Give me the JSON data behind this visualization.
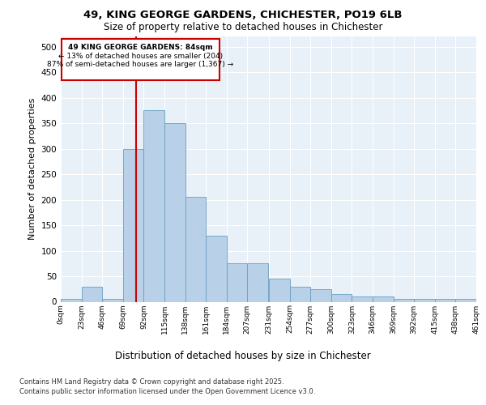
{
  "title_line1": "49, KING GEORGE GARDENS, CHICHESTER, PO19 6LB",
  "title_line2": "Size of property relative to detached houses in Chichester",
  "xlabel": "Distribution of detached houses by size in Chichester",
  "ylabel": "Number of detached properties",
  "background_color": "#e8f0f8",
  "bar_color": "#b8d0e8",
  "bar_edge_color": "#6a9fc0",
  "grid_color": "#ffffff",
  "annotation_box_color": "#cc0000",
  "property_line_color": "#cc0000",
  "property_size": 84,
  "annotation_text_line1": "49 KING GEORGE GARDENS: 84sqm",
  "annotation_text_line2": "← 13% of detached houses are smaller (204)",
  "annotation_text_line3": "87% of semi-detached houses are larger (1,367) →",
  "footnote_line1": "Contains HM Land Registry data © Crown copyright and database right 2025.",
  "footnote_line2": "Contains public sector information licensed under the Open Government Licence v3.0.",
  "bin_edges": [
    0,
    23,
    46,
    69,
    92,
    115,
    138,
    161,
    184,
    207,
    231,
    254,
    277,
    300,
    323,
    346,
    369,
    392,
    415,
    438,
    461
  ],
  "bin_labels": [
    "0sqm",
    "23sqm",
    "46sqm",
    "69sqm",
    "92sqm",
    "115sqm",
    "138sqm",
    "161sqm",
    "184sqm",
    "207sqm",
    "231sqm",
    "254sqm",
    "277sqm",
    "300sqm",
    "323sqm",
    "346sqm",
    "369sqm",
    "392sqm",
    "415sqm",
    "438sqm",
    "461sqm"
  ],
  "bar_heights": [
    5,
    30,
    5,
    300,
    375,
    350,
    205,
    130,
    75,
    75,
    45,
    30,
    25,
    15,
    10,
    10,
    5,
    5,
    5,
    5
  ],
  "ylim": [
    0,
    520
  ],
  "yticks": [
    0,
    50,
    100,
    150,
    200,
    250,
    300,
    350,
    400,
    450,
    500
  ]
}
